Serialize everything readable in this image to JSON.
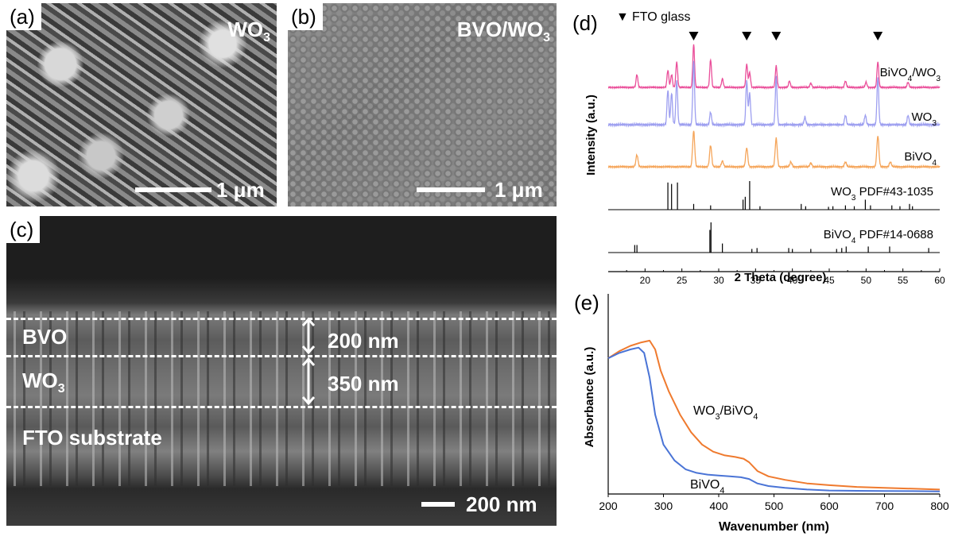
{
  "panel_a": {
    "label": "(a)",
    "material_main": "WO",
    "material_sub": "3",
    "scalebar": "1 μm"
  },
  "panel_b": {
    "label": "(b)",
    "material_main": "BVO/WO",
    "material_sub": "3",
    "scalebar": "1 μm"
  },
  "panel_c": {
    "label": "(c)",
    "layer_bvo": "BVO",
    "layer_wo3_main": "WO",
    "layer_wo3_sub": "3",
    "layer_fto": "FTO substrate",
    "thickness_bvo": "200 nm",
    "thickness_wo3": "350 nm",
    "scalebar": "200 nm"
  },
  "panel_d": {
    "label": "(d)"
  },
  "panel_e": {
    "label": "(e)"
  },
  "colors": {
    "pink": "#ea4f9a",
    "purple": "#9d9ff0",
    "orange": "#f5a55a",
    "uv_orange": "#ef7a2e",
    "uv_blue": "#4a74d6"
  },
  "chart_data": [
    {
      "type": "line",
      "panel": "d",
      "legend_marker": "▼",
      "legend_text": "FTO glass",
      "xlabel": "2 Theta (degree)",
      "ylabel": "Intensity (a.u.)",
      "xlim": [
        15,
        60
      ],
      "xticks": [
        "20",
        "25",
        "30",
        "35",
        "40",
        "45",
        "50",
        "55",
        "60"
      ],
      "series": [
        {
          "name": "BiVO4/WO3",
          "label_main": "BiVO",
          "label_sub1": "4",
          "label_mid": "/WO",
          "label_sub2": "3",
          "peaks": [
            [
              18.9,
              0.3
            ],
            [
              23.1,
              0.4
            ],
            [
              23.6,
              0.3
            ],
            [
              24.3,
              0.6
            ],
            [
              26.6,
              1.0
            ],
            [
              28.9,
              0.65
            ],
            [
              30.5,
              0.2
            ],
            [
              33.8,
              0.55
            ],
            [
              34.2,
              0.35
            ],
            [
              37.8,
              0.5
            ],
            [
              39.6,
              0.15
            ],
            [
              42.5,
              0.1
            ],
            [
              47.2,
              0.15
            ],
            [
              50.0,
              0.12
            ],
            [
              51.6,
              0.6
            ],
            [
              55.7,
              0.12
            ]
          ]
        },
        {
          "name": "WO3",
          "label_main": "WO",
          "label_sub1": "3",
          "peaks": [
            [
              23.1,
              0.55
            ],
            [
              23.6,
              0.5
            ],
            [
              24.3,
              0.7
            ],
            [
              26.6,
              1.0
            ],
            [
              28.9,
              0.2
            ],
            [
              33.8,
              0.7
            ],
            [
              34.2,
              0.5
            ],
            [
              37.8,
              0.75
            ],
            [
              41.7,
              0.12
            ],
            [
              47.2,
              0.15
            ],
            [
              49.9,
              0.15
            ],
            [
              51.6,
              0.75
            ],
            [
              55.7,
              0.15
            ]
          ]
        },
        {
          "name": "BiVO4",
          "label_main": "BiVO",
          "label_sub1": "4",
          "peaks": [
            [
              18.9,
              0.25
            ],
            [
              26.6,
              0.75
            ],
            [
              28.9,
              0.45
            ],
            [
              30.5,
              0.12
            ],
            [
              33.8,
              0.4
            ],
            [
              37.8,
              0.6
            ],
            [
              39.8,
              0.1
            ],
            [
              42.5,
              0.08
            ],
            [
              47.2,
              0.1
            ],
            [
              51.6,
              0.65
            ],
            [
              53.3,
              0.1
            ]
          ]
        }
      ],
      "fto_peaks": [
        26.6,
        33.8,
        37.8,
        51.6
      ],
      "references": [
        {
          "name": "WO3 PDF#43-1035",
          "label_main": "WO",
          "label_sub": "3",
          "label_rest": " PDF#43-1035",
          "sticks": [
            [
              23.1,
              0.95
            ],
            [
              23.6,
              0.9
            ],
            [
              24.4,
              0.95
            ],
            [
              26.6,
              0.2
            ],
            [
              28.9,
              0.15
            ],
            [
              33.3,
              0.35
            ],
            [
              33.6,
              0.45
            ],
            [
              34.2,
              1.0
            ],
            [
              35.6,
              0.12
            ],
            [
              41.2,
              0.2
            ],
            [
              41.8,
              0.12
            ],
            [
              44.9,
              0.1
            ],
            [
              45.5,
              0.12
            ],
            [
              47.2,
              0.15
            ],
            [
              48.4,
              0.12
            ],
            [
              49.9,
              0.35
            ],
            [
              50.6,
              0.15
            ],
            [
              53.5,
              0.15
            ],
            [
              54.6,
              0.12
            ],
            [
              55.9,
              0.2
            ],
            [
              56.3,
              0.12
            ]
          ]
        },
        {
          "name": "BiVO4 PDF#14-0688",
          "label_main": "BiVO",
          "label_sub": "4",
          "label_rest": " PDF#14-0688",
          "sticks": [
            [
              18.6,
              0.25
            ],
            [
              18.9,
              0.25
            ],
            [
              28.8,
              0.75
            ],
            [
              28.95,
              1.0
            ],
            [
              30.5,
              0.3
            ],
            [
              34.5,
              0.12
            ],
            [
              35.2,
              0.15
            ],
            [
              39.5,
              0.15
            ],
            [
              40.0,
              0.12
            ],
            [
              42.5,
              0.12
            ],
            [
              46.0,
              0.12
            ],
            [
              46.7,
              0.15
            ],
            [
              47.3,
              0.2
            ],
            [
              50.3,
              0.2
            ],
            [
              53.2,
              0.2
            ],
            [
              58.5,
              0.15
            ]
          ]
        }
      ]
    },
    {
      "type": "line",
      "panel": "e",
      "xlabel": "Wavenumber (nm)",
      "ylabel": "Absorbance (a.u.)",
      "xlim": [
        200,
        800
      ],
      "ylim": [
        0,
        1
      ],
      "xticks": [
        "200",
        "300",
        "400",
        "500",
        "600",
        "700",
        "800"
      ],
      "series": [
        {
          "name": "WO3/BiVO4",
          "label_main": "WO",
          "label_sub1": "3",
          "label_mid": "/BiVO",
          "label_sub2": "4",
          "x": [
            200,
            220,
            240,
            260,
            275,
            285,
            295,
            310,
            330,
            350,
            370,
            390,
            410,
            430,
            445,
            455,
            470,
            490,
            520,
            560,
            600,
            650,
            700,
            750,
            800
          ],
          "y": [
            0.77,
            0.81,
            0.84,
            0.86,
            0.87,
            0.82,
            0.7,
            0.58,
            0.45,
            0.35,
            0.28,
            0.24,
            0.22,
            0.21,
            0.2,
            0.18,
            0.13,
            0.1,
            0.08,
            0.06,
            0.05,
            0.04,
            0.035,
            0.03,
            0.025
          ]
        },
        {
          "name": "BiVO4",
          "label_main": "BiVO",
          "label_sub1": "4",
          "x": [
            200,
            220,
            240,
            255,
            265,
            275,
            285,
            300,
            320,
            340,
            360,
            380,
            400,
            420,
            440,
            455,
            470,
            490,
            520,
            560,
            600,
            650,
            700,
            750,
            800
          ],
          "y": [
            0.77,
            0.8,
            0.82,
            0.83,
            0.8,
            0.66,
            0.45,
            0.28,
            0.19,
            0.14,
            0.12,
            0.11,
            0.105,
            0.1,
            0.095,
            0.085,
            0.06,
            0.045,
            0.035,
            0.025,
            0.02,
            0.018,
            0.017,
            0.016,
            0.015
          ]
        }
      ]
    }
  ]
}
